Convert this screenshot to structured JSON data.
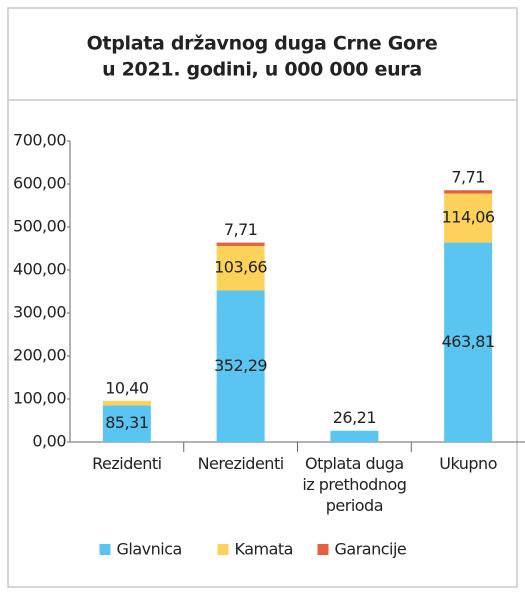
{
  "chart_data": {
    "type": "stacked_bar",
    "title": [
      "Otplata državnog duga Crne Gore",
      "u 2021. godini, u 000 000 eura"
    ],
    "categories": [
      "Rezidenti",
      "Nerezidenti",
      "Otplata duga iz prethodnog perioda",
      "Ukupno"
    ],
    "series": [
      {
        "name": "Glavnica",
        "color": "#5bc5f2",
        "values": [
          85.31,
          352.29,
          26.21,
          463.81
        ],
        "value_labels": [
          "85,31",
          "352,29",
          "26,21",
          "463,81"
        ]
      },
      {
        "name": "Kamata",
        "color": "#fdd25a",
        "values": [
          10.4,
          103.66,
          null,
          114.06
        ],
        "value_labels": [
          "10,40",
          "103,66",
          null,
          "114,06"
        ]
      },
      {
        "name": "Garancije",
        "color": "#e5603f",
        "values": [
          null,
          7.71,
          null,
          7.71
        ],
        "value_labels": [
          null,
          "7,71",
          null,
          "7,71"
        ]
      }
    ],
    "ylim": [
      0,
      700
    ],
    "yticks": [
      {
        "value": 0,
        "label": "0,00"
      },
      {
        "value": 100,
        "label": "100,00"
      },
      {
        "value": 200,
        "label": "200,00"
      },
      {
        "value": 300,
        "label": "300,00"
      },
      {
        "value": 400,
        "label": "400,00"
      },
      {
        "value": 500,
        "label": "500,00"
      },
      {
        "value": 600,
        "label": "600,00"
      },
      {
        "value": 700,
        "label": "700,00"
      }
    ],
    "legend": "bottom",
    "grid": false
  }
}
